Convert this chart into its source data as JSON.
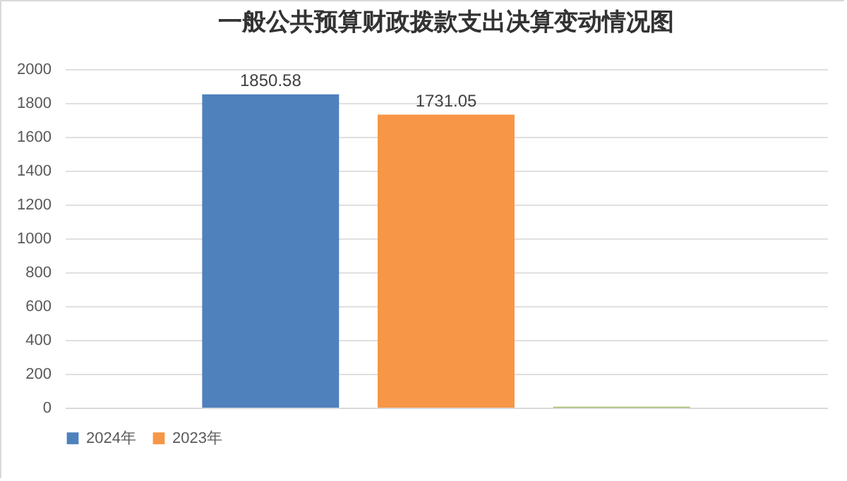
{
  "chart_data": {
    "type": "bar",
    "title": "一般公共预算财政拨款支出决算变动情况图",
    "categories": [
      null
    ],
    "series": [
      {
        "name": "2024年",
        "color": "#4f81bd",
        "values": [
          1850.58
        ],
        "value_labels": [
          "1850.58"
        ]
      },
      {
        "name": "2023年",
        "color": "#f79646",
        "values": [
          1731.05
        ],
        "value_labels": [
          "1731.05"
        ]
      },
      {
        "color": "#9bbb59",
        "values": [
          5
        ],
        "value_labels": [
          null
        ]
      }
    ],
    "ylim": [
      0,
      2000
    ],
    "yticks": [
      0,
      200,
      400,
      600,
      800,
      1000,
      1200,
      1400,
      1600,
      1800,
      2000
    ],
    "grid": "y",
    "legend": "bottom"
  }
}
